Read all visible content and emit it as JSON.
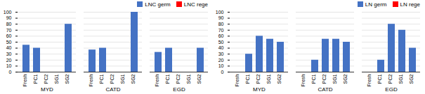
{
  "chart_data": [
    {
      "type": "bar",
      "categories": [
        "Fresh",
        "PC1",
        "PC2",
        "SG1",
        "SG2",
        "Fresh",
        "PC1",
        "PC2",
        "SG1",
        "SG2",
        "Fresh",
        "PC1",
        "PC2",
        "SG1",
        "SG2"
      ],
      "groups": [
        "MYD",
        "CATD",
        "EGD"
      ],
      "series": [
        {
          "name": "LNC germ",
          "color": "#4472C4",
          "values": [
            45,
            40,
            0,
            0,
            80,
            37,
            40,
            0,
            0,
            100,
            33,
            40,
            0,
            0,
            40
          ]
        },
        {
          "name": "LNC rege",
          "color": "#FF0000",
          "values": [
            0,
            0,
            0,
            0,
            0,
            0,
            0,
            0,
            0,
            0,
            0,
            0,
            0,
            0,
            0
          ]
        }
      ],
      "ylim": [
        0,
        100
      ],
      "yticks": [
        0,
        10,
        20,
        30,
        40,
        50,
        60,
        70,
        80,
        90,
        100
      ],
      "grid": true,
      "legend": "upper right"
    },
    {
      "type": "bar",
      "categories": [
        "Fresh",
        "PC1",
        "PC2",
        "SG1",
        "SG2",
        "Fresh",
        "PC1",
        "PC2",
        "SG1",
        "SG2",
        "Fresh",
        "PC1",
        "PC2",
        "SG1",
        "SG2"
      ],
      "groups": [
        "MYD",
        "CATD",
        "EGD"
      ],
      "series": [
        {
          "name": "LN germ",
          "color": "#4472C4",
          "values": [
            0,
            30,
            60,
            55,
            50,
            0,
            20,
            55,
            55,
            50,
            0,
            20,
            80,
            70,
            40
          ]
        },
        {
          "name": "LN rege",
          "color": "#FF0000",
          "values": [
            0,
            0,
            0,
            0,
            0,
            0,
            0,
            0,
            0,
            0,
            0,
            0,
            0,
            0,
            0
          ]
        }
      ],
      "ylim": [
        0,
        100
      ],
      "yticks": [
        0,
        10,
        20,
        30,
        40,
        50,
        60,
        70,
        80,
        90,
        100
      ],
      "grid": true,
      "legend": "upper right"
    }
  ]
}
